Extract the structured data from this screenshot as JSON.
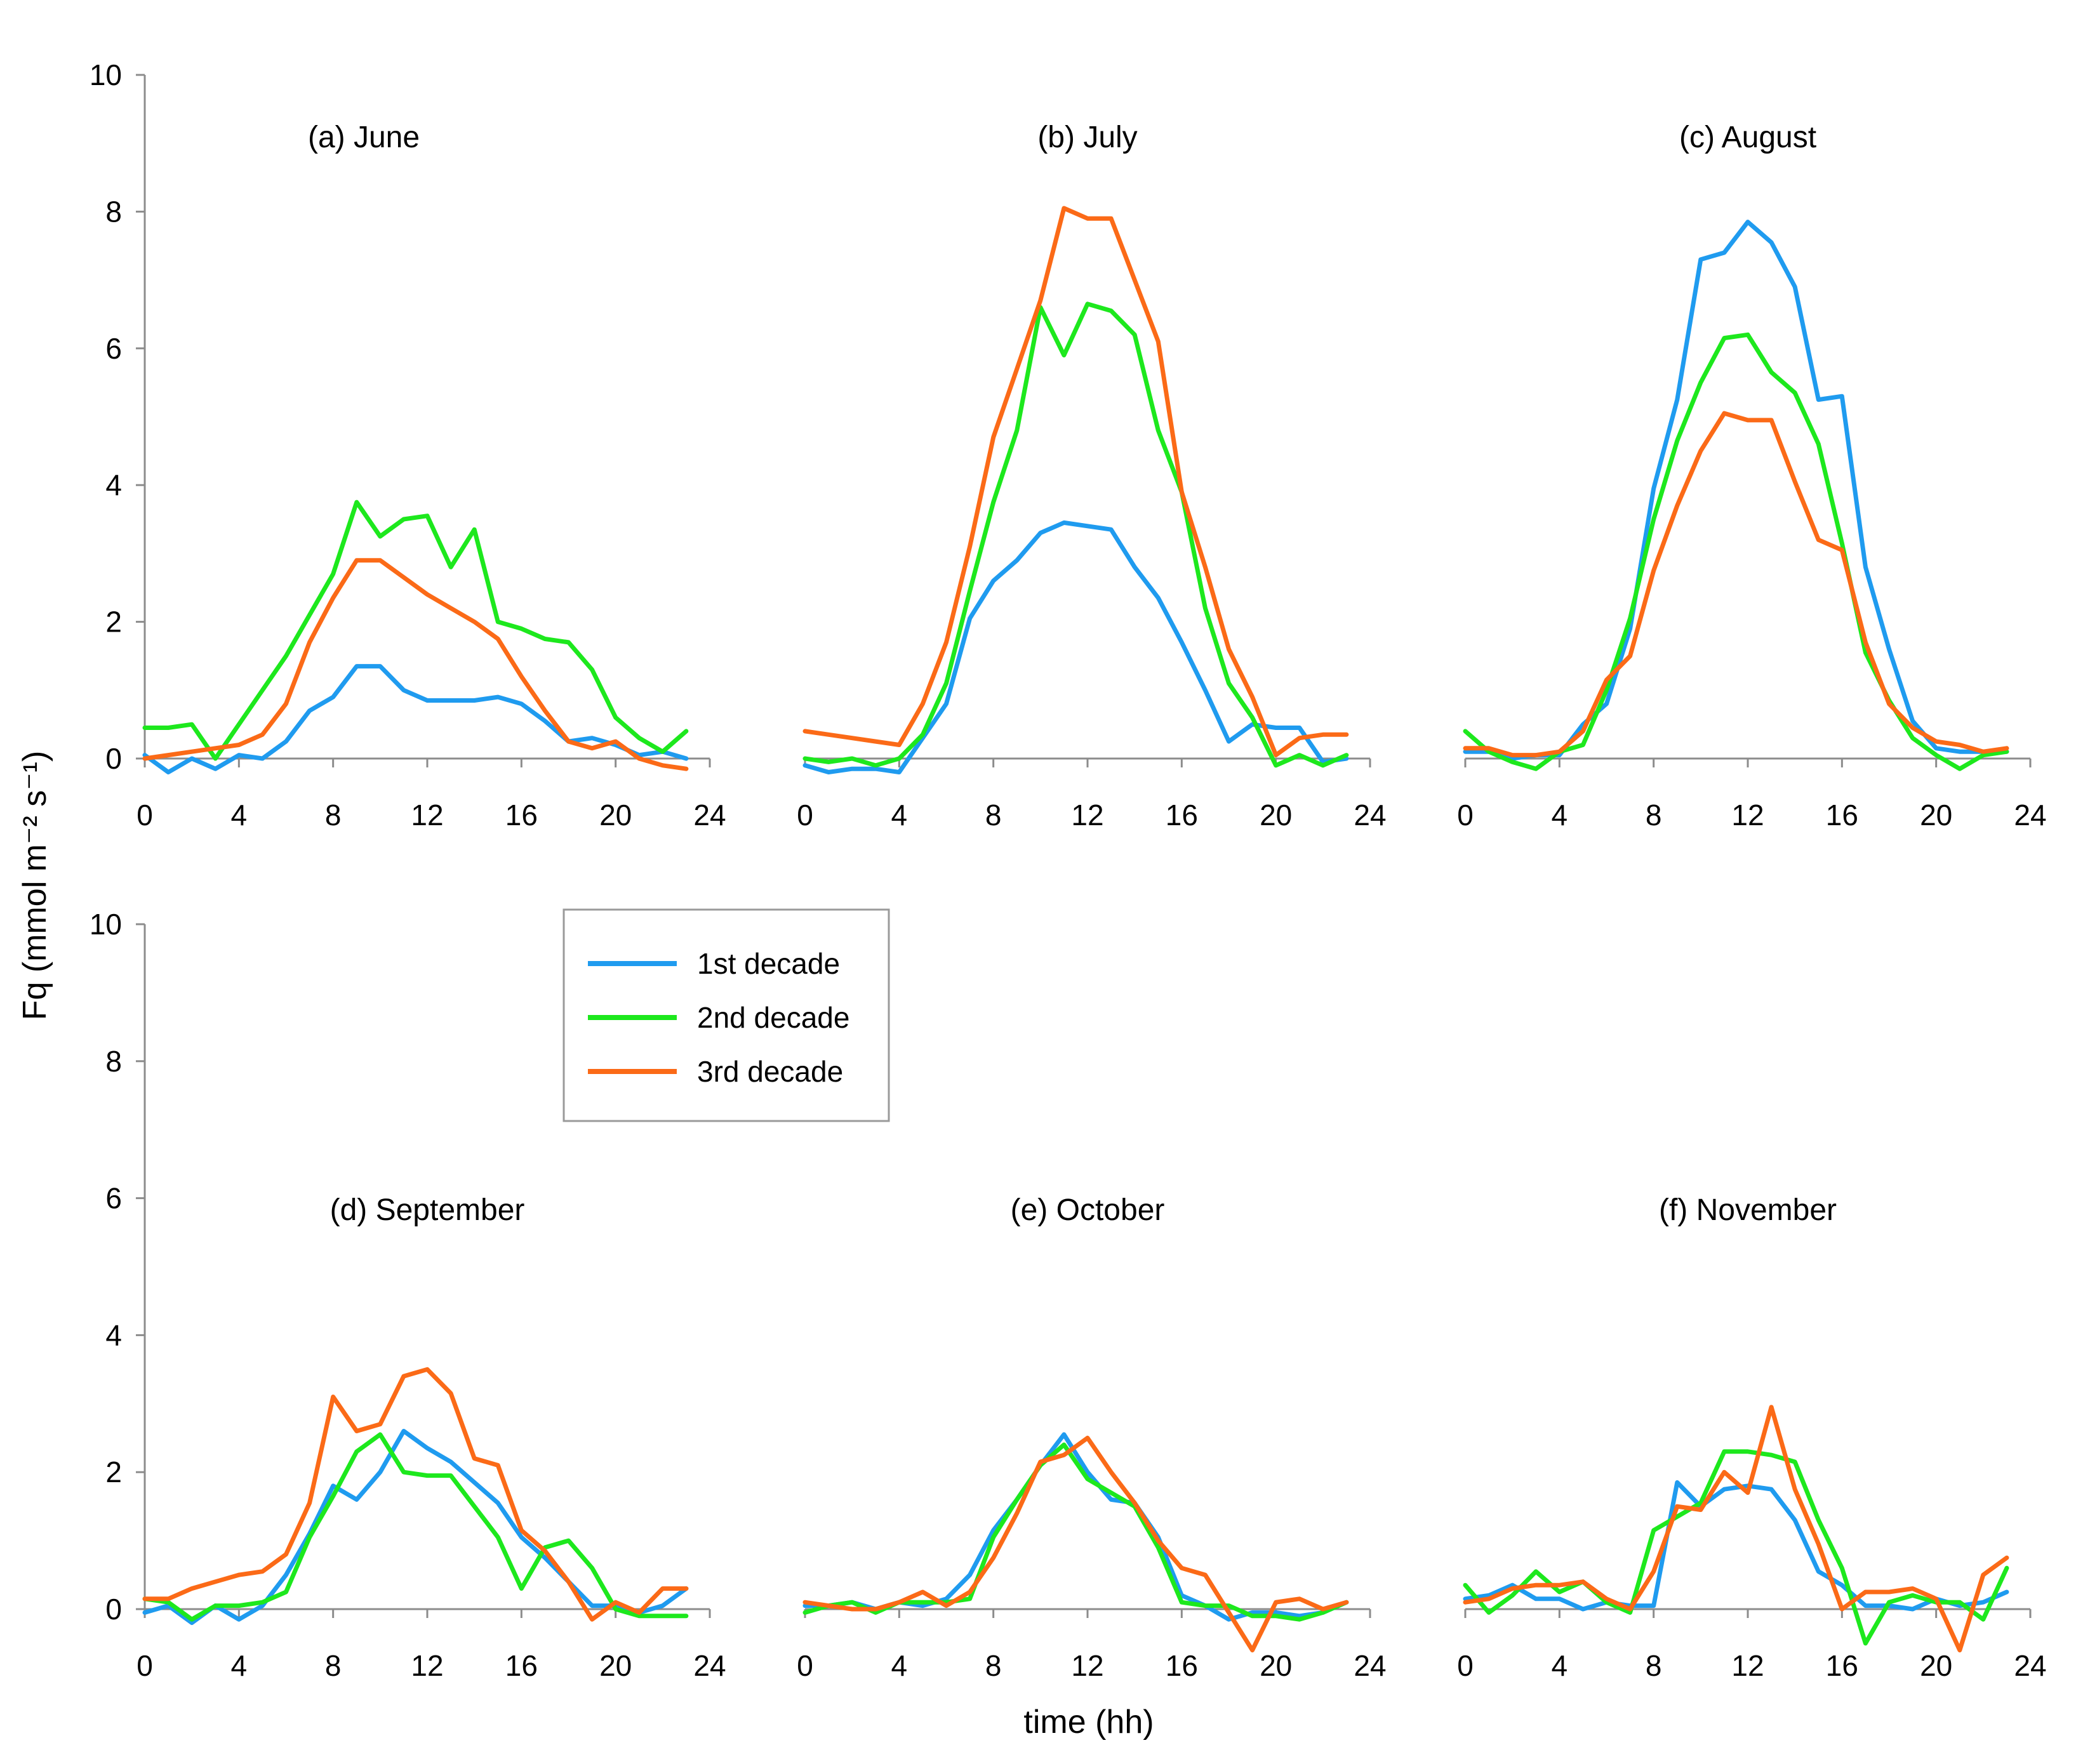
{
  "chart_data": {
    "type": "line",
    "ylabel": "Fq (mmol m⁻² s⁻¹)",
    "xlabel": "time (hh)",
    "xlim": [
      0,
      24
    ],
    "ylim": [
      0,
      10
    ],
    "xticks": [
      0,
      4,
      8,
      12,
      16,
      20,
      24
    ],
    "yticks": [
      0,
      2,
      4,
      6,
      8,
      10
    ],
    "grid": false,
    "legend": {
      "position": "between top-row and bottom-row panels, left",
      "entries": [
        "1st decade",
        "2nd decade",
        "3rd decade"
      ]
    },
    "colors": {
      "1st decade": "#1f9bef",
      "2nd decade": "#1de81d",
      "3rd decade": "#fb6a17"
    },
    "x": [
      0,
      1,
      2,
      3,
      4,
      5,
      6,
      7,
      8,
      9,
      10,
      11,
      12,
      13,
      14,
      15,
      16,
      17,
      18,
      19,
      20,
      21,
      22,
      23
    ],
    "panels": [
      {
        "title": "(a) June",
        "series": [
          {
            "name": "1st decade",
            "values": [
              0.05,
              -0.2,
              0.0,
              -0.15,
              0.05,
              0.0,
              0.25,
              0.7,
              0.9,
              1.35,
              1.35,
              1.0,
              0.85,
              0.85,
              0.85,
              0.9,
              0.8,
              0.55,
              0.25,
              0.3,
              0.2,
              0.05,
              0.1,
              0.0
            ]
          },
          {
            "name": "2nd decade",
            "values": [
              0.45,
              0.45,
              0.5,
              0.0,
              0.5,
              1.0,
              1.5,
              2.1,
              2.7,
              3.75,
              3.25,
              3.5,
              3.55,
              2.8,
              3.35,
              2.0,
              1.9,
              1.75,
              1.7,
              1.3,
              0.6,
              0.3,
              0.1,
              0.4
            ]
          },
          {
            "name": "3rd decade",
            "values": [
              0.0,
              0.05,
              0.1,
              0.15,
              0.2,
              0.35,
              0.8,
              1.7,
              2.35,
              2.9,
              2.9,
              2.65,
              2.4,
              2.2,
              2.0,
              1.75,
              1.2,
              0.7,
              0.25,
              0.15,
              0.25,
              0.0,
              -0.1,
              -0.15
            ]
          }
        ]
      },
      {
        "title": "(b) July",
        "series": [
          {
            "name": "1st decade",
            "values": [
              -0.1,
              -0.2,
              -0.15,
              -0.15,
              -0.2,
              0.3,
              0.8,
              2.05,
              2.6,
              2.9,
              3.3,
              3.45,
              3.4,
              3.35,
              2.8,
              2.35,
              1.7,
              1.0,
              0.25,
              0.5,
              0.45,
              0.45,
              -0.05,
              0.0
            ]
          },
          {
            "name": "2nd decade",
            "values": [
              0.0,
              -0.05,
              0.0,
              -0.1,
              0.0,
              0.35,
              1.1,
              2.45,
              3.75,
              4.8,
              6.6,
              5.9,
              6.65,
              6.55,
              6.2,
              4.8,
              3.9,
              2.2,
              1.1,
              0.6,
              -0.1,
              0.05,
              -0.1,
              0.05
            ]
          },
          {
            "name": "3rd decade",
            "values": [
              0.4,
              0.35,
              0.3,
              0.25,
              0.2,
              0.8,
              1.7,
              3.1,
              4.7,
              5.7,
              6.7,
              8.05,
              7.9,
              7.9,
              7.0,
              6.1,
              3.9,
              2.8,
              1.6,
              0.9,
              0.05,
              0.3,
              0.35,
              0.35
            ]
          }
        ]
      },
      {
        "title": "(c) August",
        "series": [
          {
            "name": "1st decade",
            "values": [
              0.1,
              0.1,
              0.0,
              0.05,
              0.05,
              0.5,
              0.8,
              1.9,
              3.95,
              5.25,
              7.3,
              7.4,
              7.85,
              7.55,
              6.9,
              5.25,
              5.3,
              2.8,
              1.6,
              0.55,
              0.15,
              0.1,
              0.1,
              0.1
            ]
          },
          {
            "name": "2nd decade",
            "values": [
              0.4,
              0.1,
              -0.05,
              -0.15,
              0.1,
              0.2,
              1.0,
              2.05,
              3.5,
              4.65,
              5.5,
              6.15,
              6.2,
              5.65,
              5.35,
              4.6,
              3.15,
              1.55,
              0.85,
              0.3,
              0.05,
              -0.15,
              0.05,
              0.1
            ]
          },
          {
            "name": "3rd decade",
            "values": [
              0.15,
              0.15,
              0.05,
              0.05,
              0.1,
              0.4,
              1.15,
              1.5,
              2.75,
              3.7,
              4.5,
              5.05,
              4.95,
              4.95,
              4.05,
              3.2,
              3.05,
              1.7,
              0.8,
              0.45,
              0.25,
              0.2,
              0.1,
              0.15
            ]
          }
        ]
      },
      {
        "title": "(d) September",
        "series": [
          {
            "name": "1st decade",
            "values": [
              -0.05,
              0.05,
              -0.2,
              0.05,
              -0.15,
              0.05,
              0.5,
              1.1,
              1.8,
              1.6,
              2.0,
              2.6,
              2.35,
              2.15,
              1.85,
              1.55,
              1.05,
              0.75,
              0.4,
              0.05,
              0.05,
              -0.05,
              0.05,
              0.3
            ]
          },
          {
            "name": "2nd decade",
            "values": [
              0.15,
              0.1,
              -0.15,
              0.05,
              0.05,
              0.1,
              0.25,
              1.05,
              1.65,
              2.3,
              2.55,
              2.0,
              1.95,
              1.95,
              1.5,
              1.05,
              0.3,
              0.9,
              1.0,
              0.6,
              0.0,
              -0.1,
              -0.1,
              -0.1
            ]
          },
          {
            "name": "3rd decade",
            "values": [
              0.15,
              0.15,
              0.3,
              0.4,
              0.5,
              0.55,
              0.8,
              1.55,
              3.1,
              2.6,
              2.7,
              3.4,
              3.5,
              3.15,
              2.2,
              2.1,
              1.15,
              0.85,
              0.4,
              -0.15,
              0.1,
              -0.05,
              0.3,
              0.3
            ]
          }
        ]
      },
      {
        "title": "(e) October",
        "series": [
          {
            "name": "1st decade",
            "values": [
              0.05,
              0.05,
              0.1,
              0.0,
              0.1,
              0.05,
              0.15,
              0.5,
              1.15,
              1.6,
              2.1,
              2.55,
              2.0,
              1.6,
              1.55,
              1.05,
              0.2,
              0.05,
              -0.15,
              -0.05,
              -0.05,
              -0.1,
              -0.05,
              0.1
            ]
          },
          {
            "name": "2nd decade",
            "values": [
              -0.05,
              0.05,
              0.1,
              -0.05,
              0.1,
              0.1,
              0.1,
              0.15,
              1.05,
              1.6,
              2.1,
              2.4,
              1.9,
              1.7,
              1.5,
              0.9,
              0.1,
              0.05,
              0.05,
              -0.1,
              -0.1,
              -0.15,
              -0.05,
              0.1
            ]
          },
          {
            "name": "3rd decade",
            "values": [
              0.1,
              0.05,
              0.0,
              0.0,
              0.1,
              0.25,
              0.05,
              0.25,
              0.75,
              1.4,
              2.15,
              2.25,
              2.5,
              2.0,
              1.55,
              1.0,
              0.6,
              0.5,
              -0.05,
              -0.6,
              0.1,
              0.15,
              0.0,
              0.1
            ]
          }
        ]
      },
      {
        "title": "(f) November",
        "series": [
          {
            "name": "1st decade",
            "values": [
              0.15,
              0.2,
              0.35,
              0.15,
              0.15,
              0.0,
              0.1,
              0.05,
              0.05,
              1.85,
              1.5,
              1.75,
              1.8,
              1.75,
              1.3,
              0.55,
              0.35,
              0.05,
              0.05,
              0.0,
              0.15,
              0.05,
              0.1,
              0.25
            ]
          },
          {
            "name": "2nd decade",
            "values": [
              0.35,
              -0.05,
              0.2,
              0.55,
              0.25,
              0.4,
              0.1,
              -0.05,
              1.15,
              1.35,
              1.55,
              2.3,
              2.3,
              2.25,
              2.15,
              1.3,
              0.6,
              -0.5,
              0.1,
              0.2,
              0.1,
              0.1,
              -0.15,
              0.6
            ]
          },
          {
            "name": "3rd decade",
            "values": [
              0.1,
              0.15,
              0.3,
              0.35,
              0.35,
              0.4,
              0.15,
              0.0,
              0.55,
              1.5,
              1.45,
              2.0,
              1.7,
              2.95,
              1.75,
              0.95,
              0.0,
              0.25,
              0.25,
              0.3,
              0.15,
              -0.6,
              0.5,
              0.75
            ]
          }
        ]
      }
    ]
  }
}
